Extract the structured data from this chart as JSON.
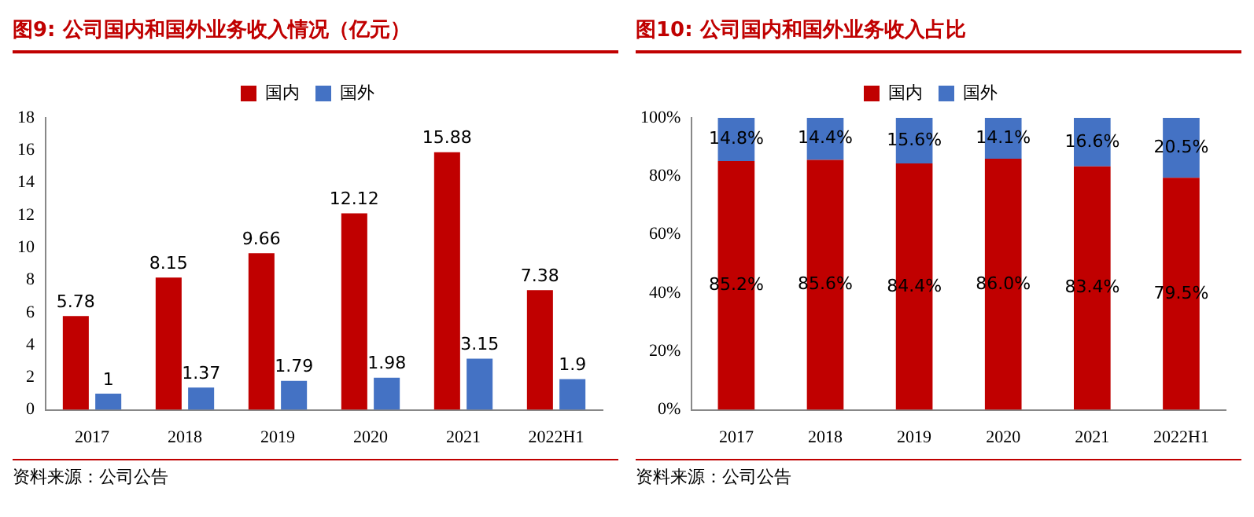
{
  "chart_data": [
    {
      "type": "bar",
      "title": "图9:  公司国内和国外业务收入情况（亿元）",
      "categories": [
        "2017",
        "2018",
        "2019",
        "2020",
        "2021",
        "2022H1"
      ],
      "series": [
        {
          "name": "国内",
          "color": "#c00000",
          "values": [
            5.78,
            8.15,
            9.66,
            12.12,
            15.88,
            7.38
          ]
        },
        {
          "name": "国外",
          "color": "#4472c4",
          "values": [
            1,
            1.37,
            1.79,
            1.98,
            3.15,
            1.9
          ]
        }
      ],
      "ylim": [
        0,
        18
      ],
      "yticks": [
        0,
        2,
        4,
        6,
        8,
        10,
        12,
        14,
        16,
        18
      ],
      "legend": "top",
      "data_labels": true,
      "annotations": [
        "资料来源：公司公告"
      ]
    },
    {
      "type": "bar",
      "title": "图10:  公司国内和国外业务收入占比",
      "categories": [
        "2017",
        "2018",
        "2019",
        "2020",
        "2021",
        "2022H1"
      ],
      "stacked": true,
      "series": [
        {
          "name": "国内",
          "color": "#c00000",
          "values": [
            85.2,
            85.6,
            84.4,
            86.0,
            83.4,
            79.5
          ],
          "value_labels": [
            "85.2%",
            "85.6%",
            "84.4%",
            "86.0%",
            "83.4%",
            "79.5%"
          ]
        },
        {
          "name": "国外",
          "color": "#4472c4",
          "values": [
            14.8,
            14.4,
            15.6,
            14.1,
            16.6,
            20.5
          ],
          "value_labels": [
            "14.8%",
            "14.4%",
            "15.6%",
            "14.1%",
            "16.6%",
            "20.5%"
          ]
        }
      ],
      "ylim": [
        0,
        100
      ],
      "yticks": [
        {
          "value": 0,
          "label": "0%"
        },
        {
          "value": 20,
          "label": "20%"
        },
        {
          "value": 40,
          "label": "40%"
        },
        {
          "value": 60,
          "label": "60%"
        },
        {
          "value": 80,
          "label": "80%"
        },
        {
          "value": 100,
          "label": "100%"
        }
      ],
      "legend": "top",
      "annotations": [
        "资料来源：公司公告"
      ]
    }
  ]
}
